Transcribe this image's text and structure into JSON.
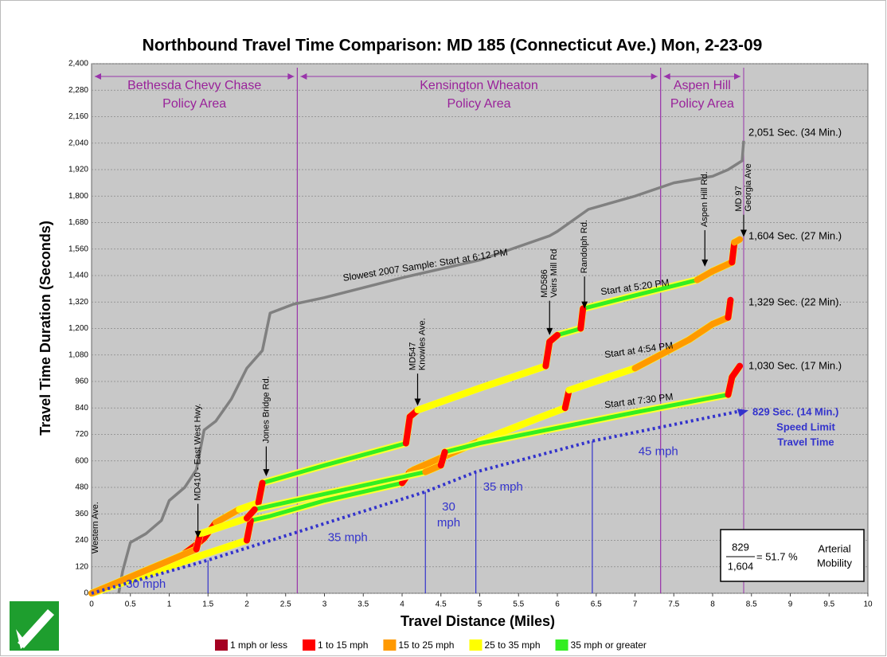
{
  "chart_data": {
    "type": "line",
    "title": "Northbound Travel Time Comparison: MD 185 (Connecticut Ave.) Mon, 2-23-09",
    "x_label": "Travel Distance (Miles)",
    "y_label": "Travel Time Duration (Seconds)",
    "xlim": [
      0,
      10
    ],
    "ylim": [
      0,
      2400
    ],
    "xticks": [
      0,
      0.5,
      1,
      1.5,
      2,
      2.5,
      3,
      3.5,
      4,
      4.5,
      5,
      5.5,
      6,
      6.5,
      7,
      7.5,
      8,
      8.5,
      9,
      9.5,
      10
    ],
    "yticks": [
      0,
      120,
      240,
      360,
      480,
      600,
      720,
      840,
      960,
      {
        "value": 1080,
        "label": "1,080"
      },
      {
        "value": 1200,
        "label": "1,200"
      },
      {
        "value": 1320,
        "label": "1,320"
      },
      {
        "value": 1440,
        "label": "1,440"
      },
      {
        "value": 1560,
        "label": "1,560"
      },
      {
        "value": 1680,
        "label": "1,680"
      },
      {
        "value": 1800,
        "label": "1,800"
      },
      {
        "value": 1920,
        "label": "1,920"
      },
      {
        "value": 2040,
        "label": "2,040"
      },
      {
        "value": 2160,
        "label": "2,160"
      },
      {
        "value": 2280,
        "label": "2,280"
      },
      {
        "value": 2400,
        "label": "2,400"
      }
    ],
    "grid": true,
    "series": [
      {
        "name": "Slowest 2007 Sample: Start at 6:12 PM",
        "color": "#808080",
        "end_label": "2,051 Sec. (34 Min.)",
        "x": [
          0.35,
          0.4,
          0.5,
          0.7,
          0.9,
          1.0,
          1.2,
          1.35,
          1.45,
          1.6,
          1.8,
          2.0,
          2.2,
          2.3,
          2.6,
          3,
          4,
          5,
          5.9,
          6.0,
          6.4,
          7,
          7.5,
          8,
          8.2,
          8.38,
          8.4
        ],
        "values": [
          0,
          100,
          230,
          270,
          330,
          420,
          480,
          560,
          740,
          780,
          880,
          1020,
          1100,
          1270,
          1310,
          1340,
          1430,
          1510,
          1620,
          1640,
          1740,
          1800,
          1860,
          1890,
          1920,
          1960,
          2051
        ]
      },
      {
        "name": "Start at 5:20 PM",
        "color": "#33ee22",
        "end_label": "1,604 Sec. (27 Min.)",
        "x": [
          0,
          0.5,
          1.0,
          1.35,
          1.45,
          1.6,
          1.9,
          2.15,
          2.2,
          2.3,
          3,
          4.05,
          4.1,
          4.2,
          5,
          5.85,
          5.9,
          6.0,
          6.3,
          6.33,
          7,
          7.8,
          8.0,
          8.25,
          8.28,
          8.35
        ],
        "values": [
          0,
          60,
          130,
          220,
          250,
          320,
          380,
          410,
          500,
          510,
          580,
          680,
          800,
          830,
          930,
          1030,
          1140,
          1170,
          1200,
          1290,
          1350,
          1420,
          1460,
          1500,
          1590,
          1604
        ]
      },
      {
        "name": "Start at 4:54 PM",
        "color": "#33ee22",
        "end_label": "1,329 Sec. (22 Min).",
        "x": [
          0,
          1,
          1.4,
          2.0,
          2.05,
          2.3,
          3,
          4.0,
          4.1,
          4.15,
          5,
          5.8,
          6.1,
          6.15,
          7,
          7.7,
          8.0,
          8.2,
          8.23
        ],
        "values": [
          0,
          120,
          170,
          240,
          330,
          350,
          420,
          500,
          550,
          560,
          690,
          800,
          840,
          920,
          1020,
          1150,
          1220,
          1250,
          1329
        ]
      },
      {
        "name": "Start at 7:30 PM",
        "color": "#33ee22",
        "end_label": "1,030 Sec. (17 Min.)",
        "x": [
          0,
          1.35,
          1.4,
          2,
          2.1,
          3,
          4.3,
          4.5,
          4.55,
          5,
          6,
          7,
          8.2,
          8.25,
          8.35
        ],
        "values": [
          0,
          200,
          270,
          340,
          380,
          450,
          550,
          580,
          640,
          680,
          750,
          820,
          900,
          980,
          1030
        ]
      },
      {
        "name": "Speed Limit Travel Time",
        "name_lines": [
          "Speed Limit",
          "Travel Time"
        ],
        "color": "#3333cc",
        "end_label": "829 Sec. (14 Min.)",
        "x": [
          0,
          1.5,
          4.3,
          4.95,
          6.45,
          8.4
        ],
        "values": [
          0,
          150,
          460,
          550,
          690,
          829
        ]
      }
    ],
    "speed_labels": [
      [
        "30 mph"
      ],
      [
        "35 mph"
      ],
      [
        "30",
        "mph"
      ],
      [
        "35 mph"
      ],
      [
        "45 mph"
      ]
    ],
    "policy_areas": [
      {
        "lines": [
          "Bethesda Chevy Chase",
          "Policy Area"
        ],
        "from": 0,
        "to": 2.65
      },
      {
        "lines": [
          "Kensington Wheaton",
          "Policy Area"
        ],
        "from": 2.65,
        "to": 7.33
      },
      {
        "lines": [
          "Aspen Hill",
          "Policy Area"
        ],
        "from": 7.33,
        "to": 8.4
      }
    ],
    "roads": [
      [
        "Western Ave."
      ],
      [
        "MD410 - East West Hwy."
      ],
      [
        "Jones Bridge Rd."
      ],
      [
        "MD547",
        "Knowles Ave."
      ],
      [
        "MD586",
        "Veirs Mill Rd"
      ],
      [
        "Randolph Rd."
      ],
      [
        "Aspen Hill Rd."
      ],
      [
        "MD 97",
        "Georgia Ave"
      ]
    ],
    "mobility": {
      "numerator": "829",
      "denominator": "1,604",
      "result": "= 51.7 %",
      "label": [
        "Arterial",
        "Mobility"
      ]
    },
    "speed_legend": [
      {
        "name": "1 mph or less",
        "color": "#a50021"
      },
      {
        "name": "1 to 15 mph",
        "color": "#ff0000"
      },
      {
        "name": "15 to 25 mph",
        "color": "#ff9900"
      },
      {
        "name": "25 to 35 mph",
        "color": "#ffff00"
      },
      {
        "name": "35 mph or greater",
        "color": "#33ee22"
      }
    ]
  }
}
